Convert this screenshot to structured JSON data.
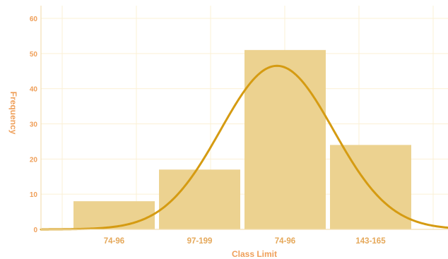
{
  "chart_data": {
    "type": "bar",
    "categories": [
      "74-96",
      "97-199",
      "74-96",
      "143-165"
    ],
    "values": [
      8,
      17,
      51,
      24
    ],
    "xlabel": "Class Limit",
    "ylabel": "Frequency",
    "ylim": [
      0,
      60
    ],
    "yticks": [
      "0",
      "10",
      "20",
      "30",
      "40",
      "50",
      "60"
    ],
    "grid": true,
    "curve": {
      "type": "line",
      "peak": 46.5,
      "smooth": true
    },
    "colors": {
      "bar": "#ecd290",
      "curve": "#d59b12",
      "tick": "#ef9f59",
      "category": "#e5a85a",
      "grid": "#fbf0d5"
    }
  }
}
